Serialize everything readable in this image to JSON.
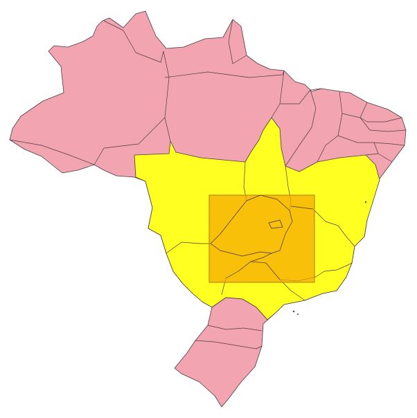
{
  "map": {
    "country": "Brazil",
    "colors": {
      "background": "#ffffff",
      "other_states": "#f2a5b1",
      "highlighted_states": "#ffff22",
      "selection_box": "#f5a800",
      "border": "#4a3a3e"
    },
    "selection_box_opacity": 0.72,
    "regions": [
      {
        "name": "north-northeast-south",
        "color_key": "other_states"
      },
      {
        "name": "central-southeast",
        "color_key": "highlighted_states"
      }
    ]
  }
}
